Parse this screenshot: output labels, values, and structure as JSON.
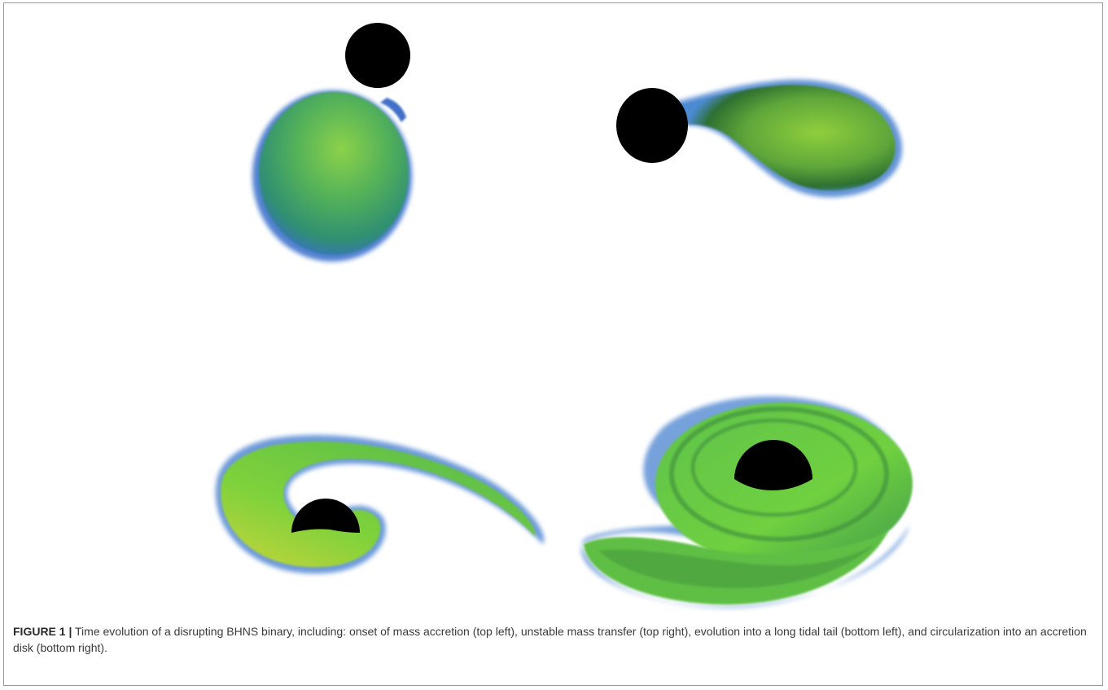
{
  "figure": {
    "label": "FIGURE 1 |",
    "caption": " Time evolution of a disrupting BHNS binary, including: onset of mass accretion (top left), unstable mass transfer (top right), evolution into a long tidal tail (bottom left), and circularization into an accretion disk (bottom right)."
  },
  "colors": {
    "matter_green": "#7ccf3a",
    "matter_dark_green": "#2f7a2a",
    "matter_yellow": "#c8d83a",
    "matter_blue_edge": "#4a7fd0",
    "black_hole": "#000000",
    "frame_border": "#9a9a9a"
  }
}
